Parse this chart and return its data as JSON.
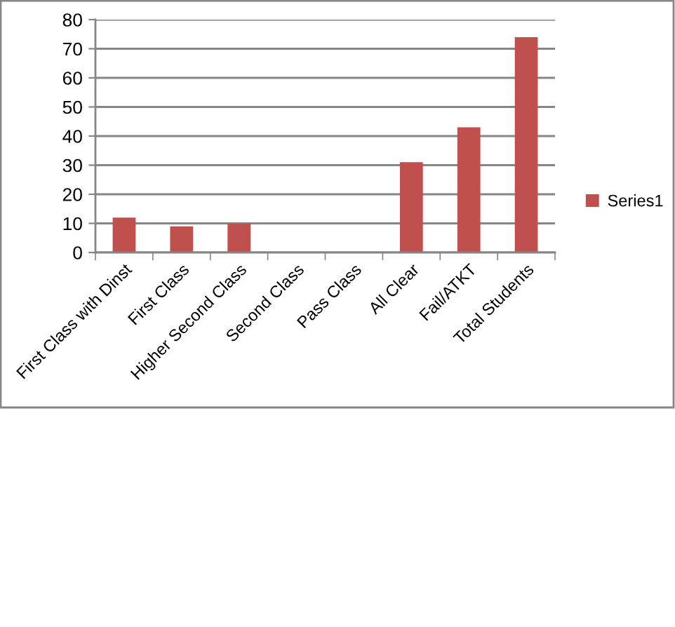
{
  "chart_data": {
    "type": "bar",
    "categories": [
      "First Class with Dinst",
      "First Class",
      "Higher Second Class",
      "Second Class",
      "Pass Class",
      "All Clear",
      "Fail/ATKT",
      "Total Students"
    ],
    "series": [
      {
        "name": "Series1",
        "color": "#c0504d",
        "values": [
          12,
          9,
          10,
          0,
          0,
          31,
          43,
          74
        ]
      }
    ],
    "ylim": [
      0,
      80
    ],
    "yticks": [
      0,
      10,
      20,
      30,
      40,
      50,
      60,
      70,
      80
    ],
    "grid": "y",
    "legend": "right"
  }
}
